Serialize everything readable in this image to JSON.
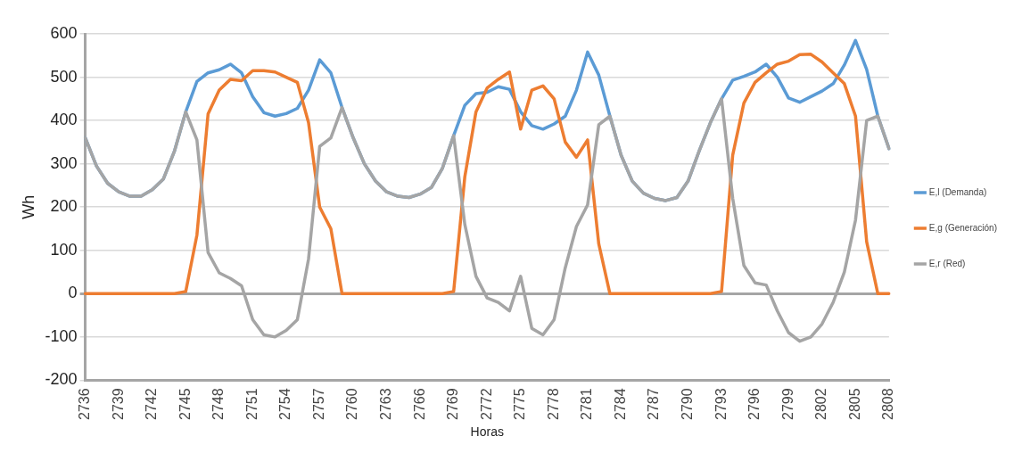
{
  "chart_data": {
    "type": "line",
    "xlabel": "Horas",
    "ylabel": "Wh",
    "categories": [
      "2736",
      null,
      null,
      "2739",
      null,
      null,
      "2742",
      null,
      null,
      "2745",
      null,
      null,
      "2748",
      null,
      null,
      "2751",
      null,
      null,
      "2754",
      null,
      null,
      "2757",
      null,
      null,
      "2760",
      null,
      null,
      "2763",
      null,
      null,
      "2766",
      null,
      null,
      "2769",
      null,
      null,
      "2772",
      null,
      null,
      "2775",
      null,
      null,
      "2778",
      null,
      null,
      "2781",
      null,
      null,
      "2784",
      null,
      null,
      "2787",
      null,
      null,
      "2790",
      null,
      null,
      "2793",
      null,
      null,
      "2796",
      null,
      null,
      "2799",
      null,
      null,
      "2802",
      null,
      null,
      "2805",
      null,
      null,
      "2808"
    ],
    "series": [
      {
        "name": "E,l (Demanda)",
        "color": "#5b9bd5",
        "values": [
          360,
          295,
          255,
          235,
          225,
          225,
          240,
          265,
          330,
          420,
          490,
          510,
          517,
          530,
          510,
          455,
          418,
          410,
          416,
          428,
          470,
          540,
          510,
          430,
          360,
          300,
          260,
          235,
          225,
          222,
          230,
          245,
          290,
          365,
          435,
          462,
          465,
          478,
          472,
          420,
          388,
          380,
          392,
          410,
          470,
          558,
          505,
          410,
          320,
          260,
          232,
          220,
          215,
          222,
          260,
          330,
          395,
          450,
          493,
          502,
          512,
          530,
          500,
          452,
          442,
          455,
          468,
          485,
          528,
          585,
          518,
          410,
          335
        ]
      },
      {
        "name": "E,g (Generación)",
        "color": "#ed7d31",
        "values": [
          0,
          0,
          0,
          0,
          0,
          0,
          0,
          0,
          0,
          5,
          135,
          415,
          470,
          495,
          492,
          515,
          515,
          512,
          500,
          488,
          395,
          200,
          150,
          0,
          0,
          0,
          0,
          0,
          0,
          0,
          0,
          0,
          0,
          5,
          270,
          420,
          475,
          495,
          512,
          380,
          470,
          480,
          450,
          350,
          315,
          355,
          115,
          0,
          0,
          0,
          0,
          0,
          0,
          0,
          0,
          0,
          0,
          5,
          320,
          440,
          488,
          510,
          530,
          537,
          552,
          553,
          535,
          510,
          485,
          410,
          120,
          0,
          0
        ]
      },
      {
        "name": "E,r (Red)",
        "color": "#a5a5a5",
        "values": [
          360,
          295,
          255,
          235,
          225,
          225,
          240,
          265,
          330,
          420,
          355,
          95,
          48,
          35,
          18,
          -60,
          -95,
          -100,
          -85,
          -60,
          80,
          340,
          360,
          430,
          360,
          300,
          260,
          235,
          225,
          222,
          230,
          245,
          290,
          365,
          160,
          40,
          -10,
          -20,
          -40,
          40,
          -80,
          -95,
          -60,
          60,
          155,
          205,
          390,
          410,
          320,
          260,
          232,
          220,
          215,
          222,
          260,
          330,
          395,
          450,
          220,
          65,
          25,
          20,
          -40,
          -90,
          -110,
          -100,
          -70,
          -20,
          50,
          170,
          400,
          410,
          335
        ]
      }
    ],
    "ylim": [
      -200,
      600
    ],
    "yticks": [
      -200,
      -100,
      0,
      100,
      200,
      300,
      400,
      500,
      600
    ],
    "grid": "y",
    "legend": "right",
    "marker": "none",
    "line_style": "solid"
  }
}
